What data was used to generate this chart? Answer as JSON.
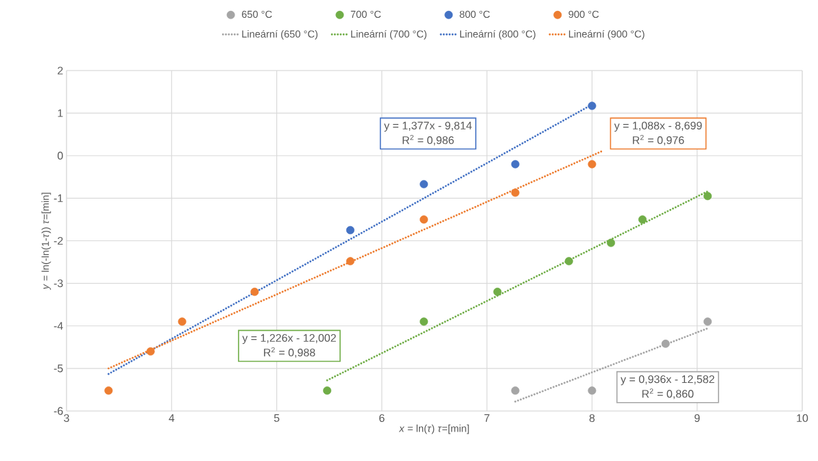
{
  "chart_data": {
    "type": "scatter",
    "xlabel": "*x* = ln(*τ*)     *τ*=[min]",
    "ylabel": "*y* = ln(-ln(1-*τ*))     *τ*=[min]",
    "xlim": [
      3,
      10
    ],
    "ylim": [
      -6,
      2
    ],
    "xticks": [
      3,
      4,
      5,
      6,
      7,
      8,
      9,
      10
    ],
    "yticks": [
      -6,
      -5,
      -4,
      -3,
      -2,
      -1,
      0,
      1,
      2
    ],
    "grid": true,
    "legend": "top",
    "series": [
      {
        "name": "650 °C",
        "color": "#a5a5a5",
        "x": [
          7.27,
          8.0,
          8.7,
          9.1
        ],
        "values": [
          -5.52,
          -5.52,
          -4.42,
          -3.9
        ]
      },
      {
        "name": "700 °C",
        "color": "#70ad47",
        "x": [
          5.48,
          6.4,
          7.1,
          7.78,
          8.18,
          8.48,
          9.1
        ],
        "values": [
          -5.52,
          -3.9,
          -3.2,
          -2.48,
          -2.05,
          -1.5,
          -0.95
        ]
      },
      {
        "name": "800 °C",
        "color": "#4472c4",
        "x": [
          5.7,
          6.4,
          7.27,
          8.0
        ],
        "values": [
          -1.75,
          -0.67,
          -0.2,
          1.17
        ]
      },
      {
        "name": "900 °C",
        "color": "#ed7d31",
        "x": [
          3.4,
          3.8,
          4.1,
          4.79,
          5.7,
          6.4,
          7.27,
          8.0
        ],
        "values": [
          -5.52,
          -4.6,
          -3.9,
          -3.2,
          -2.48,
          -1.5,
          -0.87,
          -0.2
        ]
      },
      {
        "name": "Lineární (650 °C)",
        "type": "line",
        "marker": "none",
        "line_style": "dotted",
        "color": "#a5a5a5",
        "x": [
          7.27,
          9.1
        ],
        "values": [
          -5.78,
          -4.06
        ]
      },
      {
        "name": "Lineární (700 °C)",
        "type": "line",
        "marker": "none",
        "line_style": "dotted",
        "color": "#70ad47",
        "x": [
          5.48,
          9.1
        ],
        "values": [
          -5.28,
          -0.84
        ]
      },
      {
        "name": "Lineární (800 °C)",
        "type": "line",
        "marker": "none",
        "line_style": "dotted",
        "color": "#4472c4",
        "x": [
          3.4,
          8.0
        ],
        "values": [
          -5.13,
          1.2
        ]
      },
      {
        "name": "Lineární (900 °C)",
        "type": "line",
        "marker": "none",
        "line_style": "dotted",
        "color": "#ed7d31",
        "x": [
          3.4,
          8.1
        ],
        "values": [
          -5.0,
          0.11
        ]
      }
    ],
    "annotations": [
      "y = 1,377x - 9,814",
      "R$^{2}$ = 0,986",
      "y = 1,088x - 8,699",
      "R$^{2}$ = 0,976",
      "y = 1,226x - 12,002",
      "R$^{2}$ = 0,988",
      "y = 0,936x - 12,582",
      "R$^{2}$ = 0,860"
    ]
  }
}
